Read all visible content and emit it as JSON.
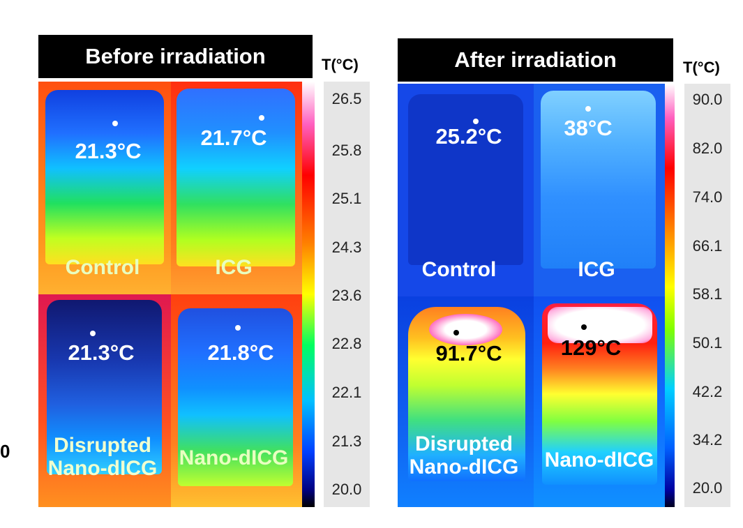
{
  "edge_text": "0",
  "before": {
    "title": "Before irradiation",
    "scale_label": "T(°C)",
    "ticks": [
      "26.5",
      "25.8",
      "25.1",
      "24.3",
      "23.6",
      "22.8",
      "22.1",
      "21.3",
      "20.0"
    ],
    "cells": [
      {
        "temp": "21.3°C",
        "label": "Control"
      },
      {
        "temp": "21.7°C",
        "label": "ICG"
      },
      {
        "temp": "21.3°C",
        "label": "Disrupted\nNano-dICG"
      },
      {
        "temp": "21.8°C",
        "label": "Nano-dICG"
      }
    ]
  },
  "after": {
    "title": "After irradiation",
    "scale_label": "T(°C)",
    "ticks": [
      "90.0",
      "82.0",
      "74.0",
      "66.1",
      "58.1",
      "50.1",
      "42.2",
      "34.2",
      "20.0"
    ],
    "cells": [
      {
        "temp": "25.2°C",
        "label": "Control"
      },
      {
        "temp": "38°C",
        "label": "ICG"
      },
      {
        "temp": "91.7°C",
        "label": "Disrupted\nNano-dICG"
      },
      {
        "temp": "129°C",
        "label": "Nano-dICG"
      }
    ]
  },
  "colors": {
    "colorbar": [
      "#ffffff",
      "#ff60c0",
      "#ff0000",
      "#ff8000",
      "#ffff00",
      "#00ff60",
      "#00c0ff",
      "#0040ff",
      "#000080",
      "#000000"
    ]
  }
}
